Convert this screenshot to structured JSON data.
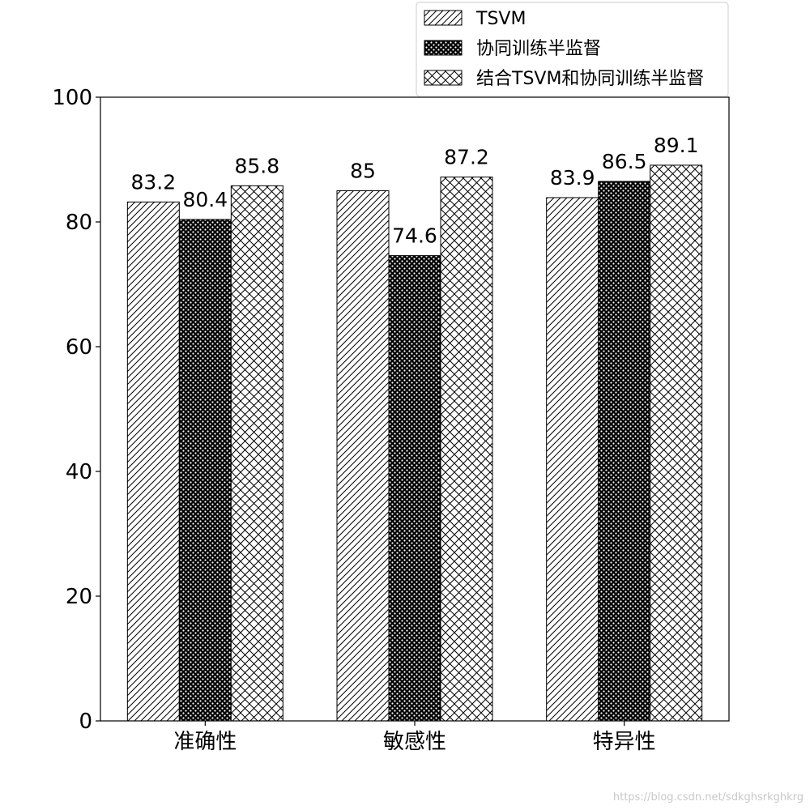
{
  "chart_data": {
    "type": "bar",
    "categories": [
      "准确性",
      "敏感性",
      "特异性"
    ],
    "series": [
      {
        "name": "TSVM",
        "values": [
          83.2,
          85,
          83.9
        ],
        "pattern": "diagonal-hatch"
      },
      {
        "name": "协同训练半监督",
        "values": [
          80.4,
          74.6,
          86.5
        ],
        "pattern": "dense-dots"
      },
      {
        "name": "结合TSVM和协同训练半监督",
        "values": [
          85.8,
          87.2,
          89.1
        ],
        "pattern": "cross-hatch"
      }
    ],
    "data_labels": [
      [
        "83.2",
        "85",
        "83.9"
      ],
      [
        "80.4",
        "74.6",
        "86.5"
      ],
      [
        "85.8",
        "87.2",
        "89.1"
      ]
    ],
    "yticks": [
      "0",
      "20",
      "40",
      "60",
      "80",
      "100"
    ],
    "ylim": [
      0,
      100
    ],
    "title": "",
    "xlabel": "",
    "ylabel": "",
    "legend_position": "top-right",
    "grid": false,
    "colors": {
      "bar_fill": "#ffffff",
      "bar_edge": "#000000",
      "hatch": "#000000"
    }
  },
  "watermark": "https://blog.csdn.net/sdkghsrkghkrg"
}
